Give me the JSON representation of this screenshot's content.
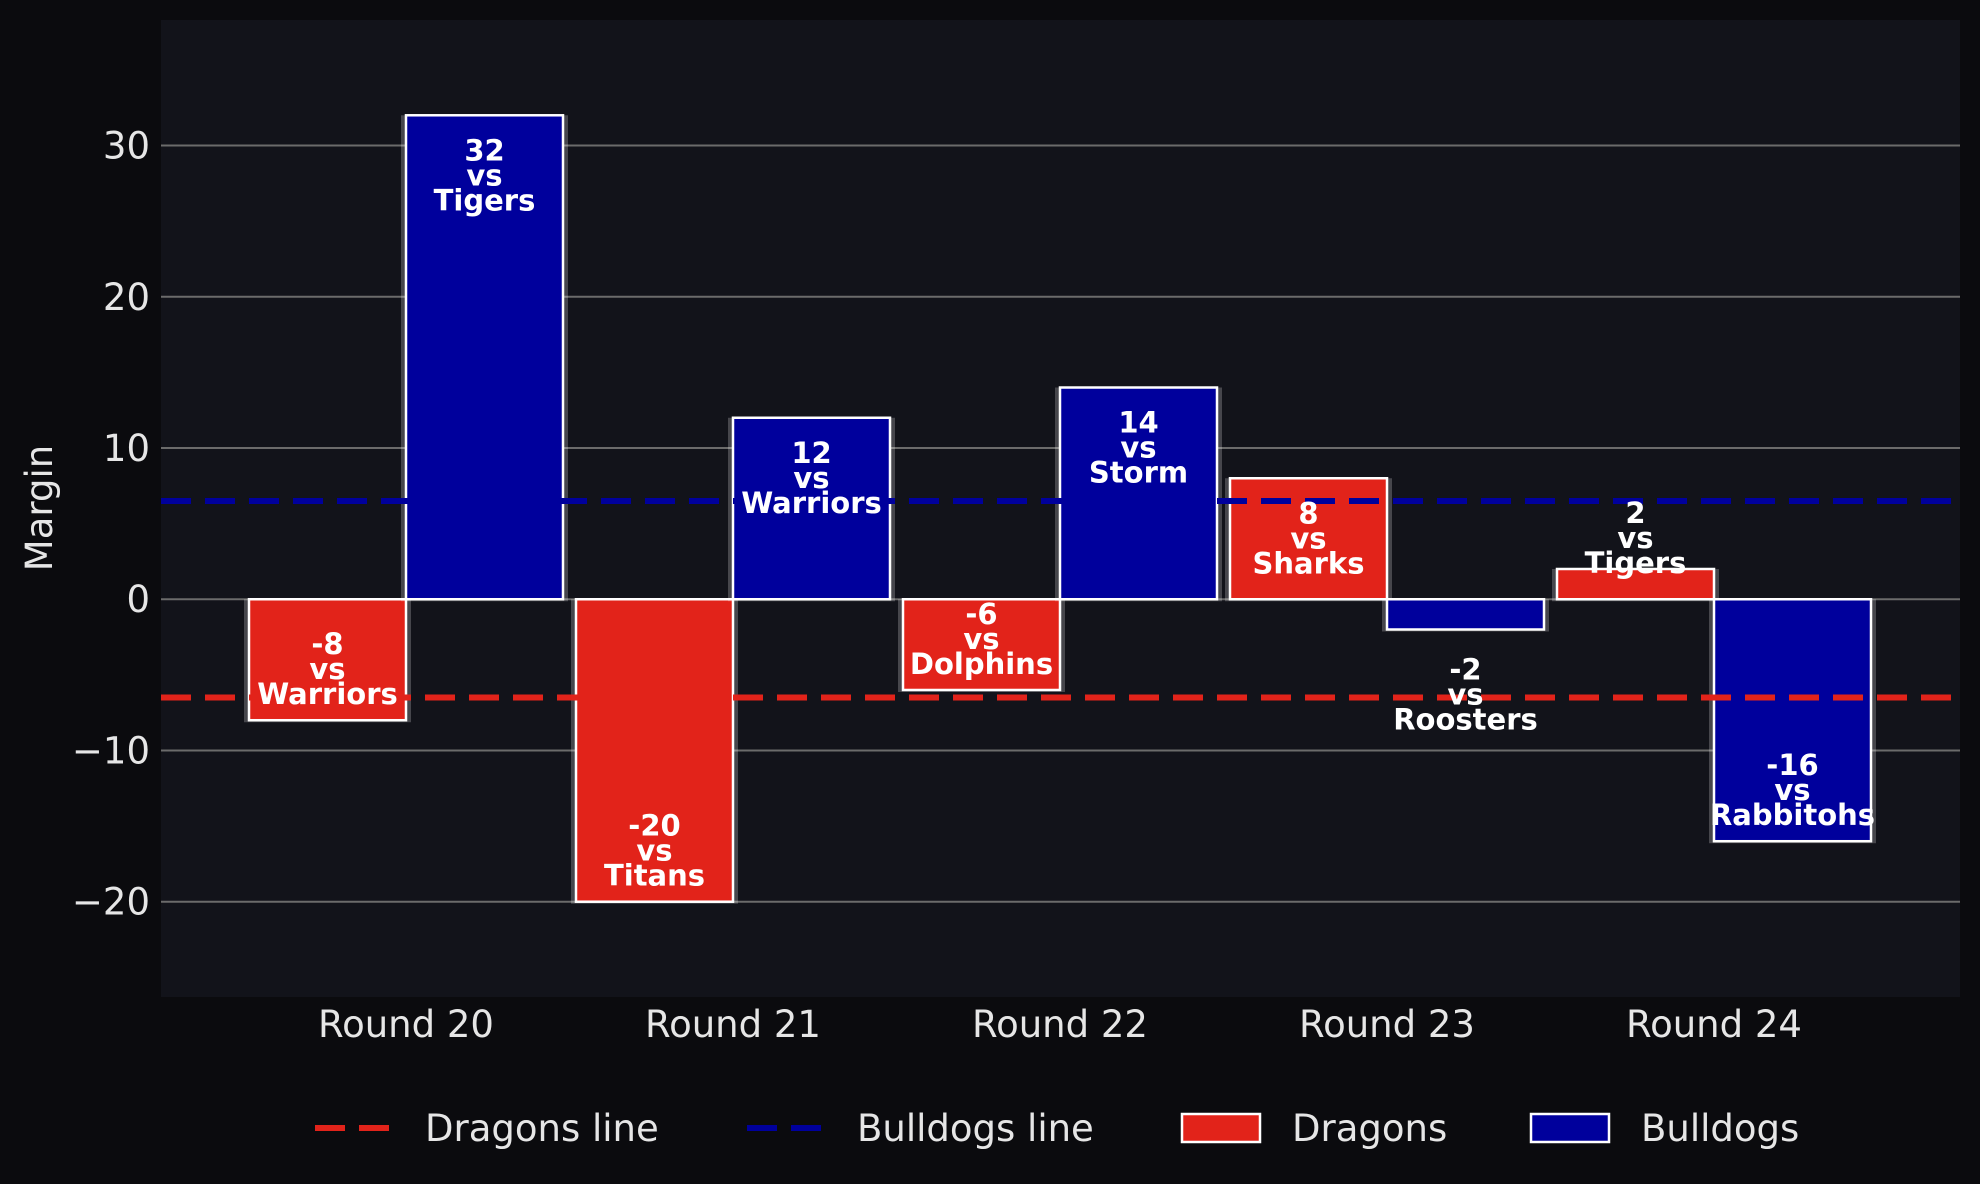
{
  "chart_data": {
    "type": "bar",
    "ylabel": "Margin",
    "ylim": [
      -26.3,
      38.3
    ],
    "yticks": [
      -20,
      -10,
      0,
      10,
      20,
      30
    ],
    "ytick_labels": [
      "−20",
      "−10",
      "0",
      "10",
      "20",
      "30"
    ],
    "categories": [
      "Round 20",
      "Round 21",
      "Round 22",
      "Round 23",
      "Round 24"
    ],
    "grid": "horizontal",
    "legend_position": "bottom",
    "series": [
      {
        "name": "Dragons",
        "color": "#e2231a",
        "values": [
          -8,
          -20,
          -6,
          8,
          2
        ],
        "opponents": [
          "Warriors",
          "Titans",
          "Dolphins",
          "Sharks",
          "Tigers"
        ]
      },
      {
        "name": "Bulldogs",
        "color": "#00009c",
        "values": [
          32,
          12,
          14,
          -2,
          -16
        ],
        "opponents": [
          "Tigers",
          "Warriors",
          "Storm",
          "Roosters",
          "Rabbitohs"
        ]
      }
    ],
    "reference_lines": [
      {
        "name": "Dragons line",
        "value": -6.5,
        "color": "#e2231a"
      },
      {
        "name": "Bulldogs line",
        "value": 6.5,
        "color": "#00009c"
      }
    ],
    "label_separator": "vs",
    "legend": [
      "Dragons line",
      "Bulldogs line",
      "Dragons",
      "Bulldogs"
    ]
  }
}
